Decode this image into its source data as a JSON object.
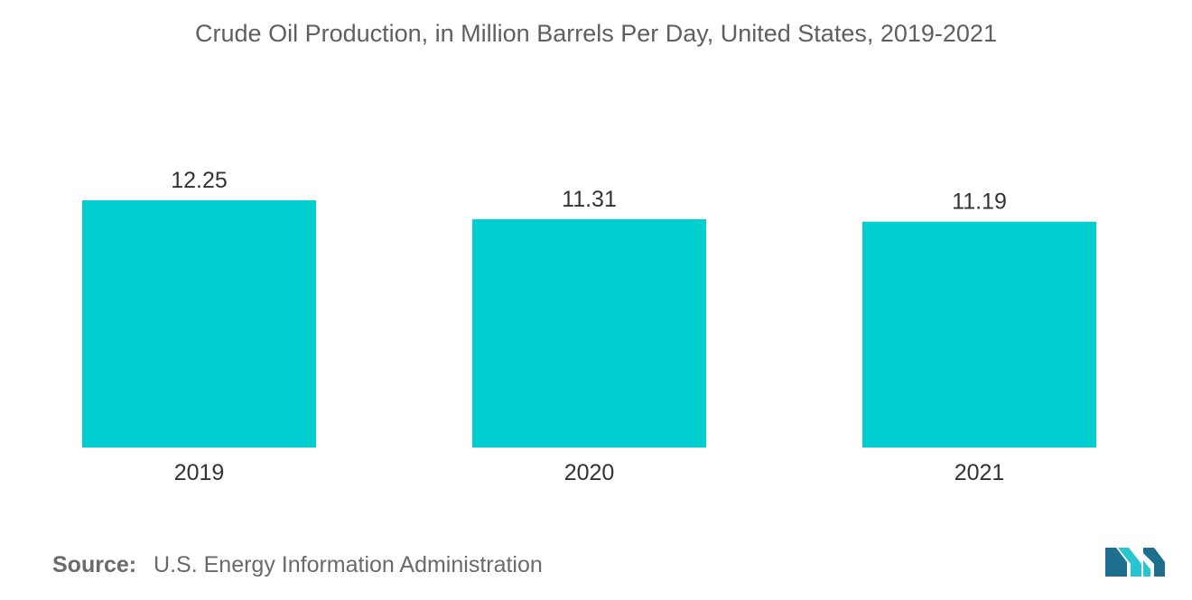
{
  "chart_data": {
    "type": "bar",
    "title": "Crude Oil Production, in Million Barrels Per Day, United States, 2019-2021",
    "categories": [
      "2019",
      "2020",
      "2021"
    ],
    "values": [
      12.25,
      11.31,
      11.19
    ],
    "value_labels": [
      "12.25",
      "11.31",
      "11.19"
    ],
    "xlabel": "",
    "ylabel": "",
    "ylim": [
      0,
      12.25
    ],
    "grid": false,
    "legend": "none",
    "bar_color": "#00ced1"
  },
  "source": {
    "label": "Source:",
    "text": "U.S. Energy Information Administration"
  },
  "colors": {
    "bar": "#00ced1",
    "logo_dark": "#1e6f8f",
    "logo_light": "#28c4cf"
  },
  "logo": {
    "icon": "mordor-intelligence-logo-icon"
  }
}
